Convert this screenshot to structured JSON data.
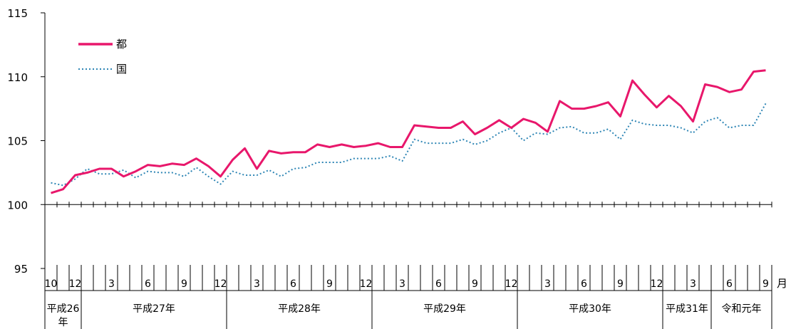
{
  "chart_data": {
    "type": "line",
    "ylim": [
      95,
      115
    ],
    "yticks": [
      "95",
      "100",
      "105",
      "110",
      "115"
    ],
    "xlabel_unit": "月",
    "legend_position": "top-left",
    "x_month_labels": [
      "10",
      "12",
      "3",
      "6",
      "9",
      "12",
      "3",
      "6",
      "9",
      "12",
      "3",
      "6",
      "9",
      "12",
      "3",
      "6",
      "9",
      "12",
      "3",
      "6",
      "9"
    ],
    "era_labels": [
      "平成26年",
      "平成27年",
      "平成28年",
      "平成29年",
      "平成30年",
      "平成31年",
      "令和元年"
    ],
    "colors": {
      "tokyo": "#e8176b",
      "national": "#2f86b5"
    },
    "series": [
      {
        "name": "都",
        "values": [
          100.9,
          101.2,
          102.3,
          102.5,
          102.8,
          102.8,
          102.2,
          102.6,
          103.1,
          103.0,
          103.2,
          103.1,
          103.6,
          103.0,
          102.2,
          103.5,
          104.4,
          102.8,
          104.2,
          104.0,
          104.1,
          104.1,
          104.7,
          104.5,
          104.7,
          104.5,
          104.6,
          104.8,
          104.5,
          104.5,
          106.2,
          106.1,
          106.0,
          106.0,
          106.5,
          105.5,
          106.0,
          106.6,
          106.0,
          106.7,
          106.4,
          105.7,
          108.1,
          107.5,
          107.5,
          107.7,
          108.0,
          106.9,
          109.7,
          108.6,
          107.6,
          108.5,
          107.7,
          106.5,
          109.4,
          109.2,
          108.8,
          109.0,
          110.4,
          110.5
        ]
      },
      {
        "name": "国",
        "values": [
          101.7,
          101.5,
          102.0,
          102.8,
          102.4,
          102.4,
          102.7,
          102.1,
          102.6,
          102.5,
          102.5,
          102.2,
          102.9,
          102.2,
          101.6,
          102.6,
          102.3,
          102.3,
          102.7,
          102.2,
          102.8,
          102.9,
          103.3,
          103.3,
          103.3,
          103.6,
          103.6,
          103.6,
          103.8,
          103.4,
          105.1,
          104.8,
          104.8,
          104.8,
          105.1,
          104.7,
          105.0,
          105.6,
          106.0,
          105.0,
          105.6,
          105.5,
          106.0,
          106.1,
          105.6,
          105.6,
          105.9,
          105.1,
          106.6,
          106.3,
          106.2,
          106.2,
          106.0,
          105.6,
          106.5,
          106.8,
          106.0,
          106.2,
          106.2,
          107.9
        ]
      }
    ]
  }
}
